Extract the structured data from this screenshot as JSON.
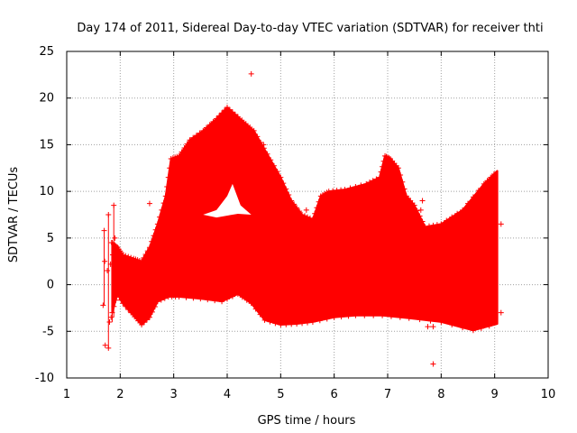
{
  "chart_data": {
    "type": "scatter",
    "title": "Day 174 of 2011, Sidereal Day-to-day VTEC variation (SDTVAR) for receiver thti",
    "xlabel": "GPS time / hours",
    "ylabel": "SDTVAR / TECUs",
    "xlim": [
      1,
      10
    ],
    "ylim": [
      -10,
      25
    ],
    "xticks": [
      "1",
      "2",
      "3",
      "4",
      "5",
      "6",
      "7",
      "8",
      "9",
      "10"
    ],
    "yticks": [
      "-10",
      "-5",
      "0",
      "5",
      "10",
      "15",
      "20",
      "25"
    ],
    "grid": true,
    "marker": "plus",
    "series_color": "#ff0000",
    "envelope": {
      "upper": [
        [
          1.85,
          4.5
        ],
        [
          1.95,
          4.0
        ],
        [
          2.05,
          3.2
        ],
        [
          2.25,
          2.8
        ],
        [
          2.4,
          2.5
        ],
        [
          2.55,
          4.0
        ],
        [
          2.7,
          6.5
        ],
        [
          2.85,
          9.5
        ],
        [
          2.95,
          13.5
        ],
        [
          3.1,
          13.8
        ],
        [
          3.3,
          15.5
        ],
        [
          3.55,
          16.5
        ],
        [
          3.8,
          17.8
        ],
        [
          4.0,
          19.0
        ],
        [
          4.2,
          18.0
        ],
        [
          4.5,
          16.5
        ],
        [
          4.75,
          14.0
        ],
        [
          5.0,
          11.5
        ],
        [
          5.2,
          9.0
        ],
        [
          5.4,
          7.5
        ],
        [
          5.6,
          7.0
        ],
        [
          5.75,
          9.5
        ],
        [
          5.9,
          10.0
        ],
        [
          6.2,
          10.2
        ],
        [
          6.6,
          10.8
        ],
        [
          6.85,
          11.5
        ],
        [
          6.95,
          13.8
        ],
        [
          7.05,
          13.5
        ],
        [
          7.2,
          12.5
        ],
        [
          7.35,
          9.5
        ],
        [
          7.5,
          8.5
        ],
        [
          7.7,
          6.2
        ],
        [
          8.0,
          6.5
        ],
        [
          8.4,
          8.0
        ],
        [
          8.8,
          10.8
        ],
        [
          9.05,
          12.2
        ]
      ],
      "lower": [
        [
          1.85,
          -3.0
        ],
        [
          1.95,
          -1.0
        ],
        [
          2.05,
          -2.0
        ],
        [
          2.2,
          -3.0
        ],
        [
          2.4,
          -4.3
        ],
        [
          2.55,
          -3.5
        ],
        [
          2.7,
          -1.8
        ],
        [
          2.9,
          -1.3
        ],
        [
          3.1,
          -1.3
        ],
        [
          3.5,
          -1.5
        ],
        [
          3.9,
          -1.8
        ],
        [
          4.2,
          -1.0
        ],
        [
          4.45,
          -2.0
        ],
        [
          4.7,
          -3.8
        ],
        [
          5.0,
          -4.3
        ],
        [
          5.3,
          -4.2
        ],
        [
          5.6,
          -4.0
        ],
        [
          6.0,
          -3.5
        ],
        [
          6.4,
          -3.3
        ],
        [
          6.9,
          -3.3
        ],
        [
          7.4,
          -3.6
        ],
        [
          8.0,
          -4.0
        ],
        [
          8.6,
          -4.9
        ],
        [
          9.05,
          -4.2
        ]
      ]
    },
    "gap": [
      [
        3.55,
        7.5
      ],
      [
        3.8,
        8.0
      ],
      [
        4.0,
        9.5
      ],
      [
        4.1,
        10.8
      ],
      [
        4.25,
        8.5
      ],
      [
        4.45,
        7.5
      ],
      [
        4.2,
        7.6
      ],
      [
        3.8,
        7.2
      ]
    ],
    "points": [
      {
        "x": 4.45,
        "y": 22.6
      },
      {
        "x": 4.68,
        "y": 15.0
      },
      {
        "x": 4.83,
        "y": 12.6
      },
      {
        "x": 7.85,
        "y": -8.5
      },
      {
        "x": 7.85,
        "y": -4.5
      },
      {
        "x": 7.75,
        "y": -4.5
      },
      {
        "x": 7.65,
        "y": 9.0
      },
      {
        "x": 7.62,
        "y": 8.0
      },
      {
        "x": 2.55,
        "y": 8.7
      },
      {
        "x": 1.88,
        "y": 8.5
      },
      {
        "x": 1.78,
        "y": 7.5
      },
      {
        "x": 1.7,
        "y": 5.8
      },
      {
        "x": 1.71,
        "y": 2.5
      },
      {
        "x": 1.68,
        "y": -2.2
      },
      {
        "x": 1.72,
        "y": -6.5
      },
      {
        "x": 1.78,
        "y": -6.8
      },
      {
        "x": 1.8,
        "y": -4.0
      },
      {
        "x": 1.83,
        "y": -3.5
      },
      {
        "x": 1.76,
        "y": 1.5
      },
      {
        "x": 1.82,
        "y": 2.2
      },
      {
        "x": 1.86,
        "y": 3.2
      },
      {
        "x": 1.84,
        "y": 4.5
      },
      {
        "x": 1.9,
        "y": 5.0
      },
      {
        "x": 5.48,
        "y": 8.0
      },
      {
        "x": 9.12,
        "y": 6.5
      },
      {
        "x": 9.12,
        "y": -3.0
      }
    ]
  }
}
